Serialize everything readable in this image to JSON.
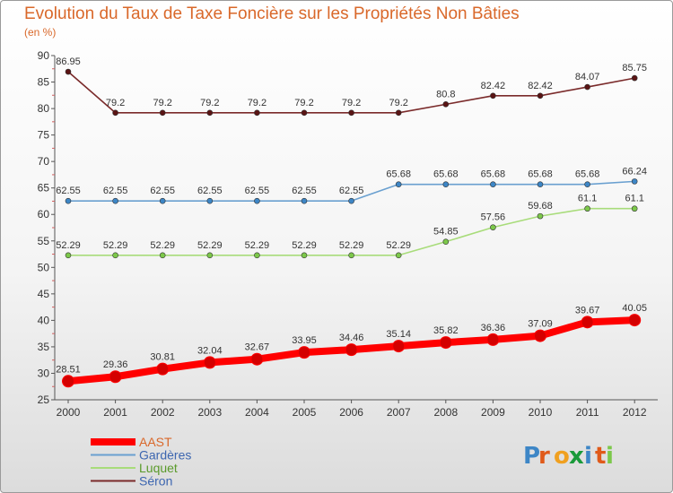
{
  "title": "Evolution du Taux de Taxe Foncière sur les Propriétés Non Bâties",
  "subtitle": "(en %)",
  "logo_text": "Proxiti",
  "chart_data": {
    "type": "line",
    "x": [
      "2000",
      "2001",
      "2002",
      "2003",
      "2004",
      "2005",
      "2006",
      "2007",
      "2008",
      "2009",
      "2010",
      "2011",
      "2012"
    ],
    "ylim": [
      25,
      90
    ],
    "yticks": [
      25,
      30,
      35,
      40,
      45,
      50,
      55,
      60,
      65,
      70,
      75,
      80,
      85,
      90
    ],
    "grid": false,
    "legend_position": "bottom-left",
    "series": [
      {
        "name": "AAST",
        "color": "#ff0000",
        "point_color": "#d40000",
        "line_width": 8,
        "values": [
          28.51,
          29.36,
          30.81,
          32.04,
          32.67,
          33.95,
          34.46,
          35.14,
          35.82,
          36.36,
          37.09,
          39.67,
          40.05
        ],
        "labels": [
          "28.51",
          "29.36",
          "30.81",
          "32.04",
          "32.67",
          "33.95",
          "34.46",
          "35.14",
          "35.82",
          "36.36",
          "37.09",
          "39.67",
          "40.05"
        ]
      },
      {
        "name": "Gardères",
        "color": "#6aa0d0",
        "point_color": "#3d86c6",
        "line_width": 1.6,
        "values": [
          62.55,
          62.55,
          62.55,
          62.55,
          62.55,
          62.55,
          62.55,
          65.68,
          65.68,
          65.68,
          65.68,
          65.68,
          66.24
        ],
        "labels": [
          "62.55",
          "62.55",
          "62.55",
          "62.55",
          "62.55",
          "62.55",
          "62.55",
          "65.68",
          "65.68",
          "65.68",
          "65.68",
          "65.68",
          "66.24"
        ]
      },
      {
        "name": "Luquet",
        "color": "#a8dc7a",
        "point_color": "#7cc84a",
        "line_width": 1.6,
        "values": [
          52.29,
          52.29,
          52.29,
          52.29,
          52.29,
          52.29,
          52.29,
          52.29,
          54.85,
          57.56,
          59.68,
          61.1,
          61.1
        ],
        "labels": [
          "52.29",
          "52.29",
          "52.29",
          "52.29",
          "52.29",
          "52.29",
          "52.29",
          "52.29",
          "54.85",
          "57.56",
          "59.68",
          "61.1",
          "61.1"
        ]
      },
      {
        "name": "Séron",
        "color": "#7a2a2a",
        "point_color": "#5a1414",
        "line_width": 1.6,
        "values": [
          86.95,
          79.2,
          79.2,
          79.2,
          79.2,
          79.2,
          79.2,
          79.2,
          80.8,
          82.42,
          82.42,
          84.07,
          85.75
        ],
        "labels": [
          "86.95",
          "79.2",
          "79.2",
          "79.2",
          "79.2",
          "79.2",
          "79.2",
          "79.2",
          "80.8",
          "82.42",
          "82.42",
          "84.07",
          "85.75"
        ]
      }
    ]
  }
}
